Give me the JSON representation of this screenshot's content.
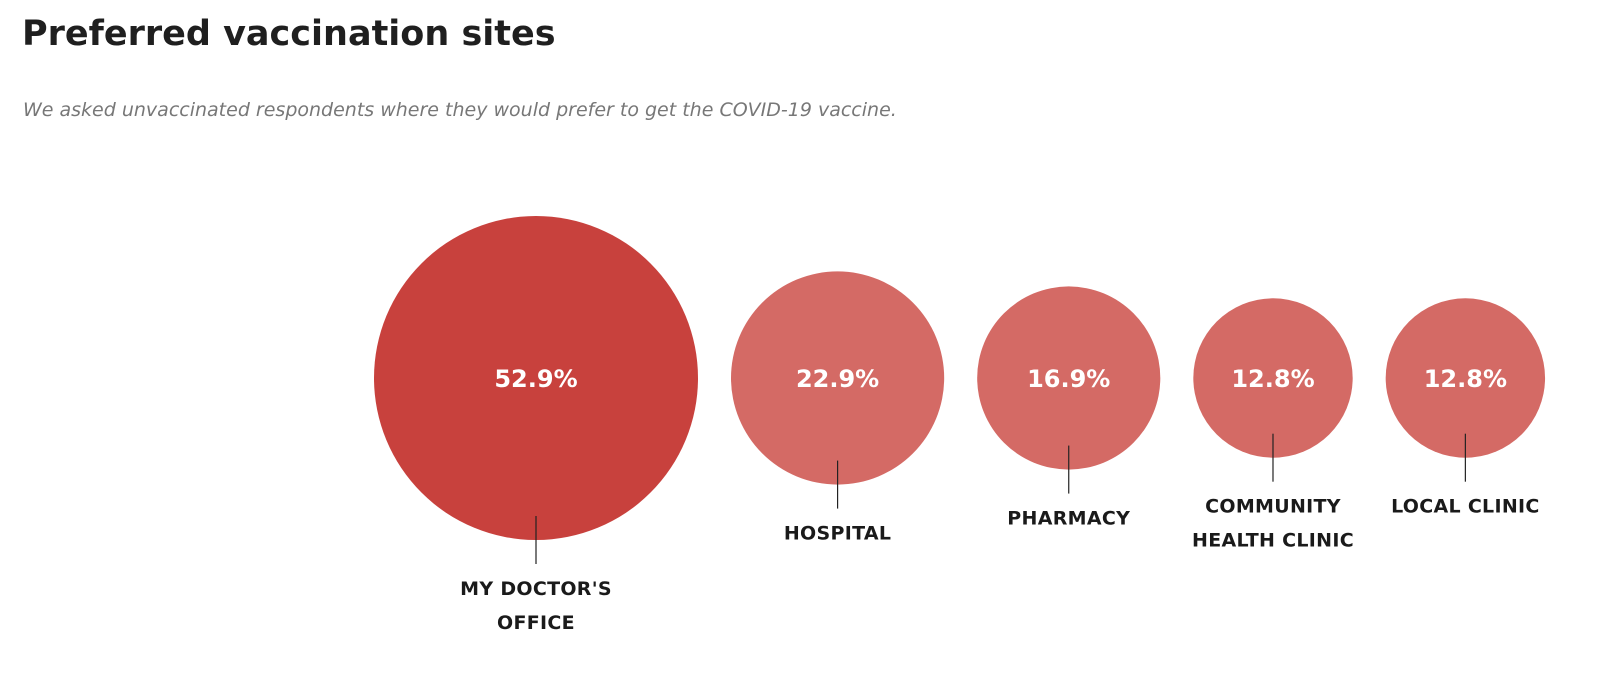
{
  "header": {
    "title": "Preferred vaccination sites",
    "subtitle": "We asked unvaccinated respondents where they would prefer to get the COVID-19 vaccine."
  },
  "chart_data": {
    "type": "bubble",
    "title": "Preferred vaccination sites",
    "subtitle": "We asked unvaccinated respondents where they would prefer to get the COVID-19 vaccine.",
    "unit": "%",
    "categories": [
      "MY DOCTOR'S OFFICE",
      "HOSPITAL",
      "PHARMACY",
      "COMMUNITY HEALTH CLINIC",
      "LOCAL CLINIC"
    ],
    "label_lines": [
      [
        "MY DOCTOR'S",
        "OFFICE"
      ],
      [
        "HOSPITAL"
      ],
      [
        "PHARMACY"
      ],
      [
        "COMMUNITY",
        "HEALTH CLINIC"
      ],
      [
        "LOCAL CLINIC"
      ]
    ],
    "values": [
      52.9,
      22.9,
      16.9,
      12.8,
      12.8
    ],
    "value_labels": [
      "52.9%",
      "22.9%",
      "16.9%",
      "12.8%",
      "12.8%"
    ],
    "colors": {
      "highlight": "#c8413d",
      "default": "#d46a65",
      "leader_line": "#222222",
      "value_text": "#ffffff"
    }
  }
}
